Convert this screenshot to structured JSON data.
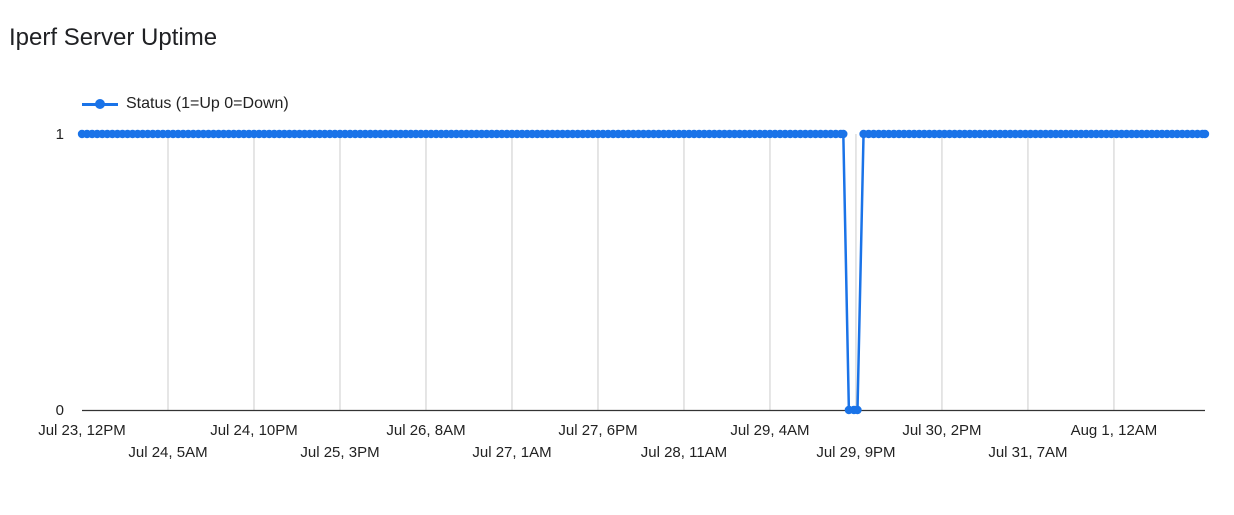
{
  "title": "Iperf Server Uptime",
  "colors": {
    "series": "#1a73e8",
    "grid": "#cccccc",
    "axis": "#333333"
  },
  "chart_data": {
    "type": "line",
    "title": "Iperf Server Uptime",
    "xlabel": "",
    "ylabel": "",
    "x_unit": "hours since Jul 23, 12PM",
    "x_range": [
      0,
      222
    ],
    "y_range": [
      0,
      1
    ],
    "y_ticks": [
      {
        "value": 1,
        "label": "1"
      },
      {
        "value": 0,
        "label": "0"
      }
    ],
    "x_ticks": [
      {
        "value": 0,
        "label": "Jul 23, 12PM",
        "row": 0
      },
      {
        "value": 17,
        "label": "Jul 24, 5AM",
        "row": 1
      },
      {
        "value": 34,
        "label": "Jul 24, 10PM",
        "row": 0
      },
      {
        "value": 51,
        "label": "Jul 25, 3PM",
        "row": 1
      },
      {
        "value": 68,
        "label": "Jul 26, 8AM",
        "row": 0
      },
      {
        "value": 85,
        "label": "Jul 27, 1AM",
        "row": 1
      },
      {
        "value": 102,
        "label": "Jul 27, 6PM",
        "row": 0
      },
      {
        "value": 119,
        "label": "Jul 28, 11AM",
        "row": 1
      },
      {
        "value": 136,
        "label": "Jul 29, 4AM",
        "row": 0
      },
      {
        "value": 153,
        "label": "Jul 29, 9PM",
        "row": 1
      },
      {
        "value": 170,
        "label": "Jul 30, 2PM",
        "row": 0
      },
      {
        "value": 187,
        "label": "Jul 31, 7AM",
        "row": 1
      },
      {
        "value": 204,
        "label": "Aug 1, 12AM",
        "row": 0
      }
    ],
    "grid": true,
    "legend": "top-left",
    "series": [
      {
        "name": "Status (1=Up 0=Down)",
        "segments": [
          {
            "from": 0,
            "to": 150.5,
            "value": 1
          },
          {
            "from": 151.6,
            "to": 153.3,
            "value": 0
          },
          {
            "from": 154.5,
            "to": 222,
            "value": 1
          }
        ],
        "sample_interval": 1
      }
    ]
  }
}
